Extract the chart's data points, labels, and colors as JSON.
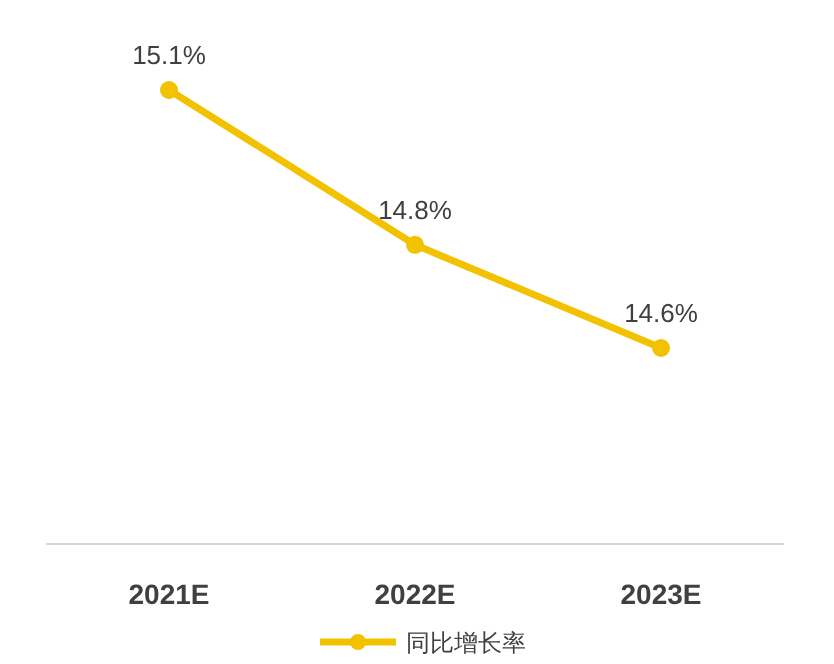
{
  "chart_data": {
    "type": "line",
    "categories": [
      "2021E",
      "2022E",
      "2023E"
    ],
    "series": [
      {
        "name": "同比增长率",
        "color": "#f2c200",
        "values": [
          15.1,
          14.8,
          14.6
        ],
        "value_labels": [
          "15.1%",
          "14.8%",
          "14.6%"
        ]
      }
    ],
    "tick_labels": "x",
    "legend": "bottom",
    "marker": "circle"
  }
}
